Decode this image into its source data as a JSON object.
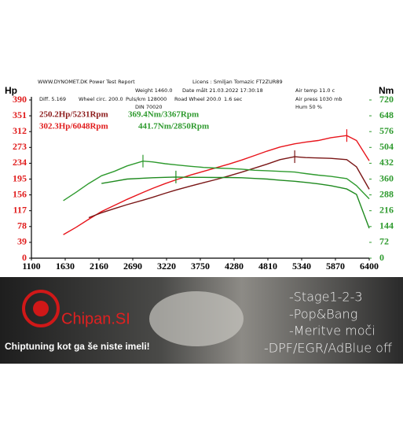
{
  "chart_data": {
    "type": "line",
    "header": [
      "WWW.DYNOMET.DK  Power Test Report",
      "Licens :  Smiljan Tomazic  FT2ZUR89",
      "Weight  1460.0",
      "Date målt 21.03.2022 17:30:18",
      "Air temp   11.0 c",
      "Diff.     5.169",
      "Wheel circ. 200.0",
      "Puls/km  128000",
      "Road Wheel 200.0",
      "1.6 sec",
      "Air press  1030 mb",
      "DIN 70020",
      "Hum     50 %"
    ],
    "y_label": "Hp",
    "y2_label": "Nm",
    "annotations": [
      {
        "text": "250.2Hp/5231Rpm",
        "color": "#8b1a1a"
      },
      {
        "text": "369.4Nm/3367Rpm",
        "color": "#2e9a2e"
      },
      {
        "text": "302.3Hp/6048Rpm",
        "color": "#e01b1b"
      },
      {
        "text": "441.7Nm/2850Rpm",
        "color": "#2e9a2e"
      }
    ],
    "x": [
      1600,
      1800,
      2000,
      2200,
      2400,
      2600,
      2850,
      3000,
      3200,
      3367,
      3600,
      3800,
      4000,
      4200,
      4400,
      4600,
      4800,
      5000,
      5231,
      5400,
      5600,
      5800,
      6048,
      6200,
      6400
    ],
    "series": [
      {
        "color": "#e8141b",
        "axis": "y",
        "values": [
          58,
          76,
          96,
          115,
          130,
          145,
          162,
          172,
          184,
          193,
          205,
          214,
          223,
          232,
          242,
          253,
          264,
          274,
          282,
          286,
          290,
          297,
          302.3,
          290,
          240
        ]
      },
      {
        "color": "#7a1616",
        "axis": "y",
        "values": [
          null,
          null,
          100,
          112,
          122,
          132,
          143,
          150,
          160,
          168,
          178,
          186,
          194,
          203,
          212,
          222,
          232,
          243,
          250.2,
          248,
          247,
          246,
          243,
          225,
          170
        ]
      },
      {
        "color": "#2e9a2e",
        "axis": "y2",
        "values": [
          262,
          300,
          340,
          375,
          395,
          420,
          441.7,
          438,
          430,
          425,
          418,
          413,
          410,
          408,
          405,
          400,
          398,
          395,
          392,
          385,
          378,
          372,
          362,
          330,
          270
        ]
      },
      {
        "color": "#1f8a1f",
        "axis": "y2",
        "values": [
          null,
          null,
          null,
          340,
          350,
          360,
          364,
          366,
          368,
          369.4,
          368,
          368,
          367,
          367,
          366,
          363,
          360,
          355,
          350,
          345,
          338,
          330,
          315,
          290,
          136
        ]
      }
    ],
    "xlim": [
      1100,
      6400
    ],
    "xticks": [
      1100,
      1630,
      2160,
      2690,
      3220,
      3750,
      4280,
      4810,
      5340,
      5870,
      6400
    ],
    "ylim": [
      0,
      390
    ],
    "yticks": [
      0,
      39,
      78,
      117,
      156,
      195,
      234,
      273,
      312,
      351,
      390
    ],
    "y2lim": [
      0,
      720
    ],
    "y2ticks": [
      0,
      72,
      144,
      216,
      288,
      360,
      432,
      504,
      576,
      648,
      720
    ],
    "ytick_color": "#e01b1b",
    "y2tick_color": "#2e9a2e"
  },
  "banner": {
    "brand": "Chipan.SI",
    "tagline": "Chiptuning kot ga še niste imeli!",
    "services": [
      "-Stage1-2-3",
      "-Pop&Bang",
      "-Meritve moči",
      "-DPF/EGR/AdBlue off"
    ]
  }
}
